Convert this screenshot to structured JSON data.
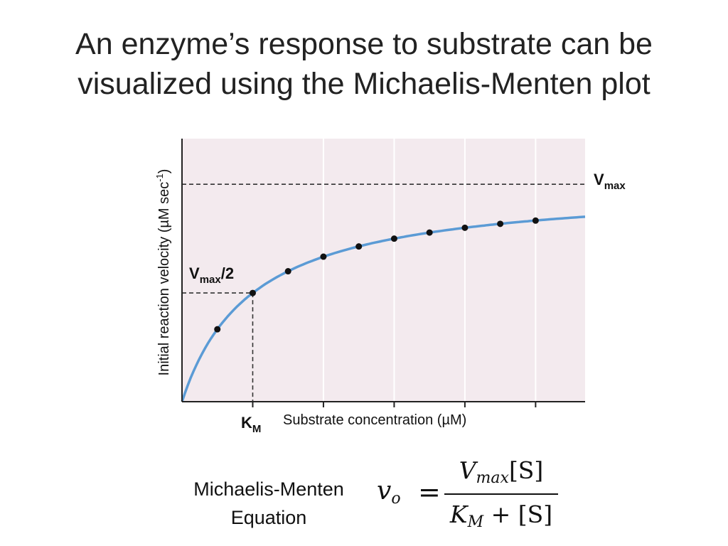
{
  "title_lines": [
    "An enzyme’s response to substrate can be",
    "visualized using the Michaelis-Menten plot"
  ],
  "equation_label": [
    "Michaelis-Menten",
    "Equation"
  ],
  "formula": {
    "lhs": "v",
    "lhs_sub": "o",
    "equals": "=",
    "num_var": "V",
    "num_sub": "max",
    "num_rest": "[S]",
    "den_var": "K",
    "den_sub": "M",
    "den_rest": "+ [S]"
  },
  "colors": {
    "background": "#ffffff",
    "plot_background": "#f3eaee",
    "curve": "#5b9bd5",
    "points": "#111111",
    "guides": "#333333",
    "gridlines": "#ffffff",
    "axes": "#222222"
  },
  "chart_data": {
    "type": "scatter",
    "ylabel": "Initial reaction velocity (µM sec",
    "ylabel_sup": "-1",
    "ylabel_close": ")",
    "xlabel": "Substrate concentration (µM)",
    "xlim": [
      0,
      5.7
    ],
    "ylim": [
      0,
      1.21
    ],
    "grid": "vertical",
    "vmax": 1.0,
    "km": 1.0,
    "vmax_label": "V",
    "vmax_label_sub": "max",
    "half_label": "V",
    "half_label_sub": "max",
    "half_label_rest": "/2",
    "km_label": "K",
    "km_label_sub": "M",
    "vertical_gridlines": [
      2,
      3,
      4,
      5
    ],
    "x_ticks": [
      1,
      2,
      3,
      4,
      5
    ],
    "curve_function": "y = 1.0 * x / (1.0 + x)",
    "points": [
      {
        "x": 0.5,
        "y": 0.333
      },
      {
        "x": 1.0,
        "y": 0.5
      },
      {
        "x": 1.5,
        "y": 0.6
      },
      {
        "x": 2.0,
        "y": 0.667
      },
      {
        "x": 2.5,
        "y": 0.714
      },
      {
        "x": 3.0,
        "y": 0.75
      },
      {
        "x": 3.5,
        "y": 0.778
      },
      {
        "x": 4.0,
        "y": 0.8
      },
      {
        "x": 4.5,
        "y": 0.818
      },
      {
        "x": 5.0,
        "y": 0.833
      }
    ]
  }
}
